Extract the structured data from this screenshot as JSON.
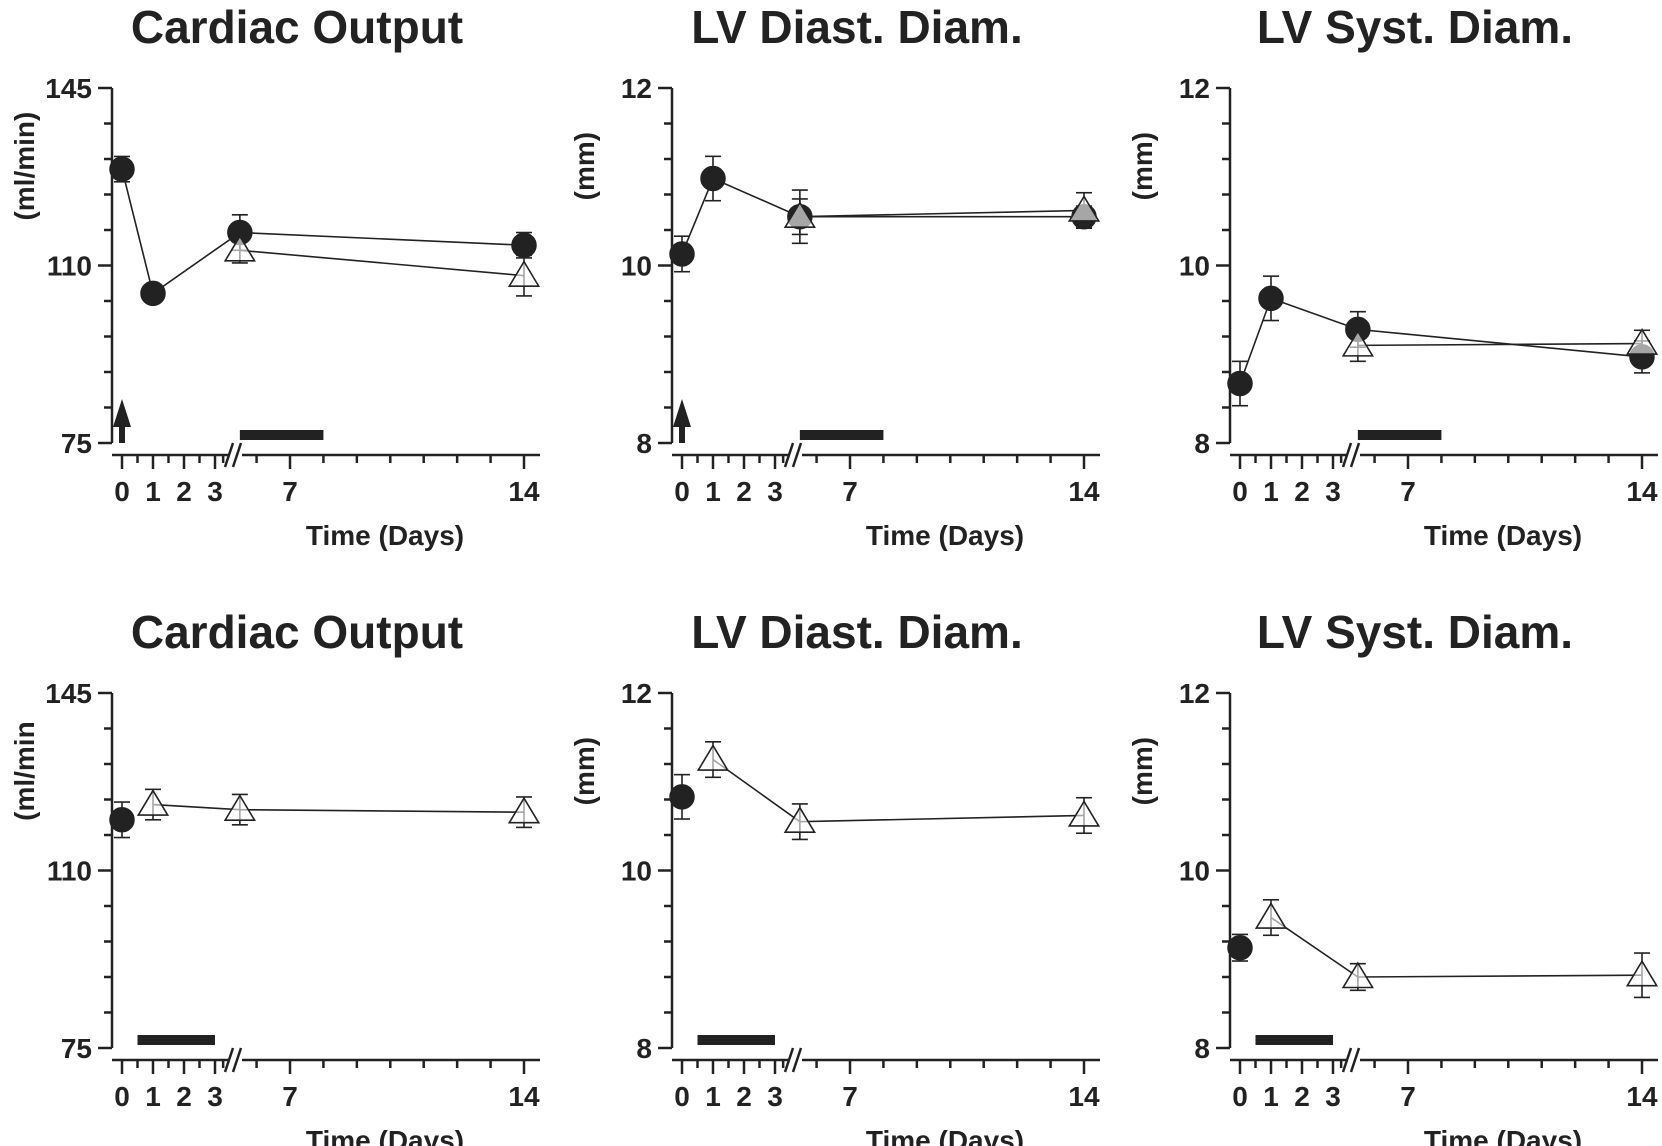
{
  "chart_data": [
    {
      "type": "scatter",
      "title": "Cardiac Output",
      "ylabel": "(ml/min)",
      "xlabel": "Time (Days)",
      "ylim": [
        75,
        145
      ],
      "yticks": [
        75,
        110,
        145
      ],
      "xticks": [
        "0",
        "1",
        "2",
        "3",
        "7",
        "14"
      ],
      "bar_interval": [
        5.5,
        8
      ],
      "arrow_at": 0,
      "series": [
        {
          "marker": "filled-circle",
          "points": [
            {
              "x": 0,
              "y": 129,
              "err": 2.5
            },
            {
              "x": 1,
              "y": 104.5,
              "err": 1.5
            },
            {
              "x": 5.5,
              "y": 116.5,
              "err": 3.5
            },
            {
              "x": 14,
              "y": 114,
              "err": 2.5
            }
          ]
        },
        {
          "marker": "open-triangle",
          "points": [
            {
              "x": 5.5,
              "y": 113,
              "err": 2.5
            },
            {
              "x": 14,
              "y": 108,
              "err": 4
            }
          ]
        }
      ]
    },
    {
      "type": "scatter",
      "title": "LV Diast. Diam.",
      "ylabel": "(mm)",
      "xlabel": "Time (Days)",
      "ylim": [
        8,
        12
      ],
      "yticks": [
        8,
        10,
        12
      ],
      "xticks": [
        "0",
        "1",
        "2",
        "3",
        "7",
        "14"
      ],
      "bar_interval": [
        5.5,
        8
      ],
      "arrow_at": 0,
      "series": [
        {
          "marker": "filled-circle",
          "points": [
            {
              "x": 0,
              "y": 10.13,
              "err": 0.2
            },
            {
              "x": 1,
              "y": 10.98,
              "err": 0.25
            },
            {
              "x": 5.5,
              "y": 10.55,
              "err": 0.2
            },
            {
              "x": 14,
              "y": 10.55,
              "err": 0.12
            }
          ]
        },
        {
          "marker": "open-triangle",
          "points": [
            {
              "x": 5.5,
              "y": 10.55,
              "err": 0.3
            },
            {
              "x": 14,
              "y": 10.62,
              "err": 0.2
            }
          ]
        }
      ]
    },
    {
      "type": "scatter",
      "title": "LV Syst. Diam.",
      "ylabel": "(mm)",
      "xlabel": "Time (Days)",
      "ylim": [
        8,
        12
      ],
      "yticks": [
        8,
        10,
        12
      ],
      "xticks": [
        "0",
        "1",
        "2",
        "3",
        "7",
        "14"
      ],
      "bar_interval": [
        5.5,
        8
      ],
      "arrow_at": null,
      "series": [
        {
          "marker": "filled-circle",
          "points": [
            {
              "x": 0,
              "y": 8.67,
              "err": 0.25
            },
            {
              "x": 1,
              "y": 9.63,
              "err": 0.25
            },
            {
              "x": 5.5,
              "y": 9.28,
              "err": 0.2
            },
            {
              "x": 14,
              "y": 8.97,
              "err": 0.18
            }
          ]
        },
        {
          "marker": "open-triangle",
          "points": [
            {
              "x": 5.5,
              "y": 9.1,
              "err": 0.18
            },
            {
              "x": 14,
              "y": 9.12,
              "err": 0.15
            }
          ]
        }
      ]
    },
    {
      "type": "scatter",
      "title": "Cardiac Output",
      "ylabel": "(ml/min",
      "xlabel": "Time (Days)",
      "ylim": [
        75,
        145
      ],
      "yticks": [
        75,
        110,
        145
      ],
      "xticks": [
        "0",
        "1",
        "2",
        "3",
        "7",
        "14"
      ],
      "bar_interval": [
        0.5,
        3
      ],
      "arrow_at": null,
      "series": [
        {
          "marker": "filled-circle",
          "points": [
            {
              "x": 0,
              "y": 120,
              "err": 3.5
            }
          ]
        },
        {
          "marker": "open-triangle",
          "points": [
            {
              "x": 1,
              "y": 123,
              "err": 3
            },
            {
              "x": 5.5,
              "y": 122,
              "err": 3
            },
            {
              "x": 14,
              "y": 121.5,
              "err": 3
            }
          ]
        }
      ]
    },
    {
      "type": "scatter",
      "title": "LV Diast. Diam.",
      "ylabel": "(mm)",
      "xlabel": "Time (Days)",
      "ylim": [
        8,
        12
      ],
      "yticks": [
        8,
        10,
        12
      ],
      "xticks": [
        "0",
        "1",
        "2",
        "3",
        "7",
        "14"
      ],
      "bar_interval": [
        0.5,
        3
      ],
      "arrow_at": null,
      "series": [
        {
          "marker": "filled-circle",
          "points": [
            {
              "x": 0,
              "y": 10.83,
              "err": 0.25
            }
          ]
        },
        {
          "marker": "open-triangle",
          "points": [
            {
              "x": 1,
              "y": 11.25,
              "err": 0.2
            },
            {
              "x": 5.5,
              "y": 10.55,
              "err": 0.2
            },
            {
              "x": 14,
              "y": 10.62,
              "err": 0.2
            }
          ]
        }
      ]
    },
    {
      "type": "scatter",
      "title": "LV Syst. Diam.",
      "ylabel": "(mm)",
      "xlabel": "Time (Days)",
      "ylim": [
        8,
        12
      ],
      "yticks": [
        8,
        10,
        12
      ],
      "xticks": [
        "0",
        "1",
        "2",
        "3",
        "7",
        "14"
      ],
      "bar_interval": [
        0.5,
        3
      ],
      "arrow_at": null,
      "series": [
        {
          "marker": "filled-circle",
          "points": [
            {
              "x": 0,
              "y": 9.13,
              "err": 0.15
            }
          ]
        },
        {
          "marker": "open-triangle",
          "points": [
            {
              "x": 1,
              "y": 9.47,
              "err": 0.2
            },
            {
              "x": 5.5,
              "y": 8.8,
              "err": 0.15
            },
            {
              "x": 14,
              "y": 8.82,
              "err": 0.25
            }
          ]
        }
      ]
    }
  ]
}
